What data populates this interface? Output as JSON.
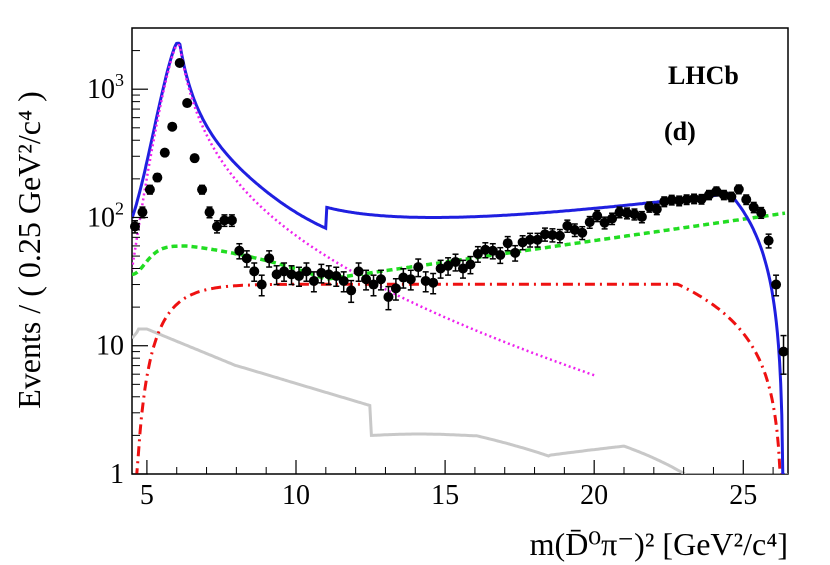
{
  "chart_data": {
    "type": "scatter",
    "title": "",
    "xlabel": "m(D̄⁰π⁻)² [GeV²/c⁴]",
    "ylabel": "Events / ( 0.25 GeV²/c⁴ )",
    "xlim": [
      4.5,
      26.5
    ],
    "ylim": [
      1,
      3000
    ],
    "yscale": "log",
    "xticks": [
      5,
      10,
      15,
      20,
      25
    ],
    "xtick_labels": [
      "5",
      "10",
      "15",
      "20",
      "25"
    ],
    "yticks": [
      1,
      10,
      100,
      1000
    ],
    "ytick_labels": [
      "1",
      "10",
      "10²",
      "10³"
    ],
    "annotations": [
      "LHCb",
      "(d)"
    ],
    "series": [
      {
        "name": "data",
        "style": "points",
        "color": "#000000",
        "x": [
          4.6,
          4.85,
          5.1,
          5.35,
          5.6,
          5.85,
          6.1,
          6.35,
          6.6,
          6.85,
          7.1,
          7.35,
          7.6,
          7.85,
          8.1,
          8.35,
          8.6,
          8.85,
          9.1,
          9.35,
          9.6,
          9.85,
          10.1,
          10.35,
          10.6,
          10.85,
          11.1,
          11.35,
          11.6,
          11.85,
          12.1,
          12.35,
          12.6,
          12.85,
          13.1,
          13.35,
          13.6,
          13.85,
          14.1,
          14.35,
          14.6,
          14.85,
          15.1,
          15.35,
          15.6,
          15.85,
          16.1,
          16.35,
          16.6,
          16.85,
          17.1,
          17.35,
          17.6,
          17.85,
          18.1,
          18.35,
          18.6,
          18.85,
          19.1,
          19.35,
          19.6,
          19.85,
          20.1,
          20.35,
          20.6,
          20.85,
          21.1,
          21.35,
          21.6,
          21.85,
          22.1,
          22.35,
          22.6,
          22.85,
          23.1,
          23.35,
          23.6,
          23.85,
          24.1,
          24.35,
          24.6,
          24.85,
          25.1,
          25.35,
          25.6,
          25.85,
          26.1,
          26.35
        ],
        "y": [
          85,
          110,
          165,
          205,
          320,
          510,
          1600,
          780,
          290,
          165,
          110,
          85,
          95,
          95,
          55,
          48,
          38,
          30,
          48,
          36,
          38,
          36,
          35,
          38,
          32,
          37,
          36,
          35,
          32,
          27,
          38,
          33,
          30,
          33,
          24,
          28,
          34,
          33,
          41,
          32,
          31,
          40,
          42,
          45,
          40,
          43,
          52,
          56,
          55,
          51,
          63,
          53,
          64,
          67,
          67,
          74,
          73,
          72,
          86,
          80,
          76,
          92,
          103,
          91,
          98,
          110,
          108,
          106,
          101,
          121,
          116,
          133,
          137,
          135,
          138,
          140,
          139,
          150,
          160,
          150,
          145,
          166,
          138,
          120,
          109,
          66,
          30,
          9
        ]
      },
      {
        "name": "total fit",
        "style": "solid",
        "color": "#1f1fe0"
      },
      {
        "name": "green component",
        "style": "dashed",
        "color": "#22dd22"
      },
      {
        "name": "magenta component",
        "style": "dotted",
        "color": "#ee22ee"
      },
      {
        "name": "red component",
        "style": "dash-dot",
        "color": "#ee1111"
      },
      {
        "name": "grey component",
        "style": "solid",
        "color": "#c8c8c8"
      }
    ]
  }
}
